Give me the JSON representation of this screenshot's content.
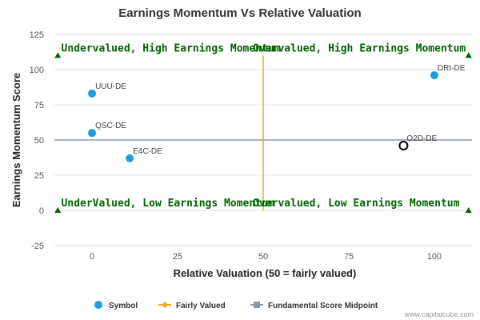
{
  "chart_data": {
    "type": "scatter",
    "title": "Earnings Momentum Vs Relative Valuation",
    "xlabel": "Relative Valuation (50 = fairly valued)",
    "ylabel": "Earnings Momentum Score",
    "xlim": [
      -11,
      111
    ],
    "ylim": [
      -25,
      125
    ],
    "xticks": [
      0,
      25,
      50,
      75,
      100
    ],
    "yticks": [
      -25,
      0,
      25,
      50,
      75,
      100,
      125
    ],
    "grid": "horizontal",
    "points": [
      {
        "label": "UUU-DE",
        "x": 0,
        "y": 83,
        "style": "filled"
      },
      {
        "label": "QSC-DE",
        "x": 0,
        "y": 55,
        "style": "filled"
      },
      {
        "label": "E4C-DE",
        "x": 11,
        "y": 37,
        "style": "filled"
      },
      {
        "label": "DRI-DE",
        "x": 100,
        "y": 96,
        "style": "filled"
      },
      {
        "label": "O2D-DE",
        "x": 91,
        "y": 46,
        "style": "hollow"
      }
    ],
    "fairly_valued_x": 50,
    "midpoint_y": 50,
    "quadrant_labels": [
      {
        "text": "Undervalued, High Earnings Momentum",
        "x": -9,
        "y": 115
      },
      {
        "text": "Overvalued, High Earnings Momentum",
        "x": 47,
        "y": 115
      },
      {
        "text": "UnderValued, Low Earnings Momentum",
        "x": -9,
        "y": 5
      },
      {
        "text": "Overvalued, Low Earnings Momentum",
        "x": 47,
        "y": 5
      }
    ],
    "markers": [
      {
        "x": -10,
        "y": 110
      },
      {
        "x": 110,
        "y": 110
      },
      {
        "x": -10,
        "y": 0
      },
      {
        "x": 110,
        "y": 0
      }
    ],
    "legend": {
      "position": "bottom-center",
      "items": [
        {
          "label": "Symbol",
          "symbol": "circle",
          "color": "#1a9ee2"
        },
        {
          "label": "Fairly Valued",
          "symbol": "line-diamond",
          "color": "#f5a623"
        },
        {
          "label": "Fundamental Score Midpoint",
          "symbol": "line-square",
          "color": "#8c99a6"
        }
      ]
    },
    "credit": "www.capitalcube.com"
  },
  "colors": {
    "point": "#1a9ee2",
    "vertical_line": "#f5a623",
    "horizontal_line": "#8c99a6",
    "quadrant_text": "#006400",
    "marker": "#006400",
    "grid": "#e6e6e6"
  }
}
